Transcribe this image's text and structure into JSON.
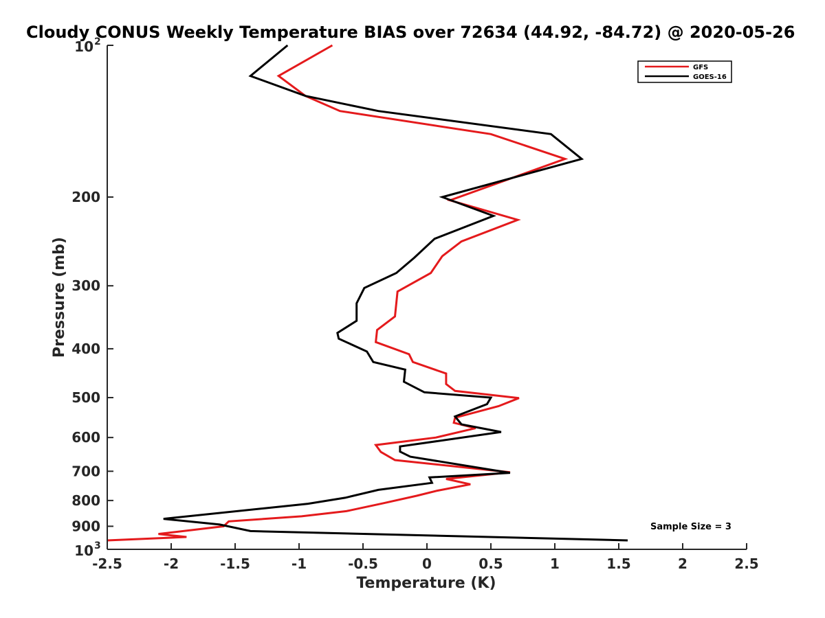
{
  "chart_data": {
    "type": "line",
    "title": "Cloudy CONUS Weekly Temperature BIAS over 72634 (44.92, -84.72) @ 2020-05-26",
    "xlabel": "Temperature (K)",
    "ylabel": "Pressure (mb)",
    "xlim": [
      -2.5,
      2.5
    ],
    "ylim": [
      100,
      1000
    ],
    "y_scale": "log",
    "y_reversed": true,
    "grid": false,
    "legend_position": "top-right",
    "x_ticks": [
      "-2.5",
      "-2",
      "-1.5",
      "-1",
      "-0.5",
      "0",
      "0.5",
      "1",
      "1.5",
      "2",
      "2.5"
    ],
    "y_ticks": [
      {
        "value": 100,
        "base": "10",
        "sup": "2"
      },
      {
        "value": 200,
        "base": "200",
        "sup": ""
      },
      {
        "value": 300,
        "base": "300",
        "sup": ""
      },
      {
        "value": 400,
        "base": "400",
        "sup": ""
      },
      {
        "value": 500,
        "base": "500",
        "sup": ""
      },
      {
        "value": 600,
        "base": "600",
        "sup": ""
      },
      {
        "value": 700,
        "base": "700",
        "sup": ""
      },
      {
        "value": 800,
        "base": "800",
        "sup": ""
      },
      {
        "value": 900,
        "base": "900",
        "sup": ""
      },
      {
        "value": 1000,
        "base": "10",
        "sup": "3"
      }
    ],
    "series": [
      {
        "name": "GFS",
        "color": "#e41a1c",
        "points": [
          [
            -0.74,
            100
          ],
          [
            -1.16,
            115
          ],
          [
            -0.95,
            126
          ],
          [
            -0.68,
            135
          ],
          [
            0.5,
            150
          ],
          [
            1.08,
            168
          ],
          [
            0.18,
            203
          ],
          [
            0.71,
            222
          ],
          [
            0.27,
            245
          ],
          [
            0.12,
            262
          ],
          [
            0.03,
            283
          ],
          [
            -0.23,
            308
          ],
          [
            -0.25,
            345
          ],
          [
            -0.39,
            367
          ],
          [
            -0.4,
            388
          ],
          [
            -0.14,
            410
          ],
          [
            -0.11,
            425
          ],
          [
            0.15,
            448
          ],
          [
            0.15,
            470
          ],
          [
            0.22,
            485
          ],
          [
            0.72,
            501
          ],
          [
            0.56,
            520
          ],
          [
            0.22,
            548
          ],
          [
            0.21,
            561
          ],
          [
            0.38,
            575
          ],
          [
            0.07,
            600
          ],
          [
            -0.4,
            621
          ],
          [
            -0.36,
            641
          ],
          [
            -0.25,
            665
          ],
          [
            0.65,
            703
          ],
          [
            0.15,
            725
          ],
          [
            0.34,
            743
          ],
          [
            0.08,
            765
          ],
          [
            -0.08,
            783
          ],
          [
            -0.34,
            810
          ],
          [
            -0.63,
            840
          ],
          [
            -0.98,
            860
          ],
          [
            -1.55,
            880
          ],
          [
            -1.59,
            900
          ],
          [
            -1.83,
            915
          ],
          [
            -2.1,
            932
          ],
          [
            -1.88,
            945
          ],
          [
            -2.5,
            960
          ]
        ]
      },
      {
        "name": "GOES-16",
        "color": "#000000",
        "points": [
          [
            -1.09,
            100
          ],
          [
            -1.38,
            115
          ],
          [
            -0.95,
            126
          ],
          [
            -0.38,
            135
          ],
          [
            0.97,
            150
          ],
          [
            1.21,
            168
          ],
          [
            0.12,
            200
          ],
          [
            0.52,
            218
          ],
          [
            0.06,
            242
          ],
          [
            -0.1,
            264
          ],
          [
            -0.24,
            283
          ],
          [
            -0.49,
            303
          ],
          [
            -0.55,
            325
          ],
          [
            -0.55,
            352
          ],
          [
            -0.7,
            372
          ],
          [
            -0.69,
            382
          ],
          [
            -0.47,
            405
          ],
          [
            -0.42,
            425
          ],
          [
            -0.17,
            440
          ],
          [
            -0.18,
            465
          ],
          [
            -0.02,
            488
          ],
          [
            0.5,
            500
          ],
          [
            0.47,
            515
          ],
          [
            0.22,
            545
          ],
          [
            0.27,
            565
          ],
          [
            0.58,
            585
          ],
          [
            -0.21,
            625
          ],
          [
            -0.21,
            640
          ],
          [
            -0.13,
            655
          ],
          [
            0.65,
            705
          ],
          [
            0.02,
            720
          ],
          [
            0.04,
            738
          ],
          [
            -0.38,
            762
          ],
          [
            -0.64,
            790
          ],
          [
            -0.93,
            812
          ],
          [
            -2.06,
            870
          ],
          [
            -1.62,
            893
          ],
          [
            -1.38,
            920
          ],
          [
            1.57,
            960
          ]
        ]
      }
    ],
    "annotations": [
      "Sample Size = 3"
    ]
  }
}
